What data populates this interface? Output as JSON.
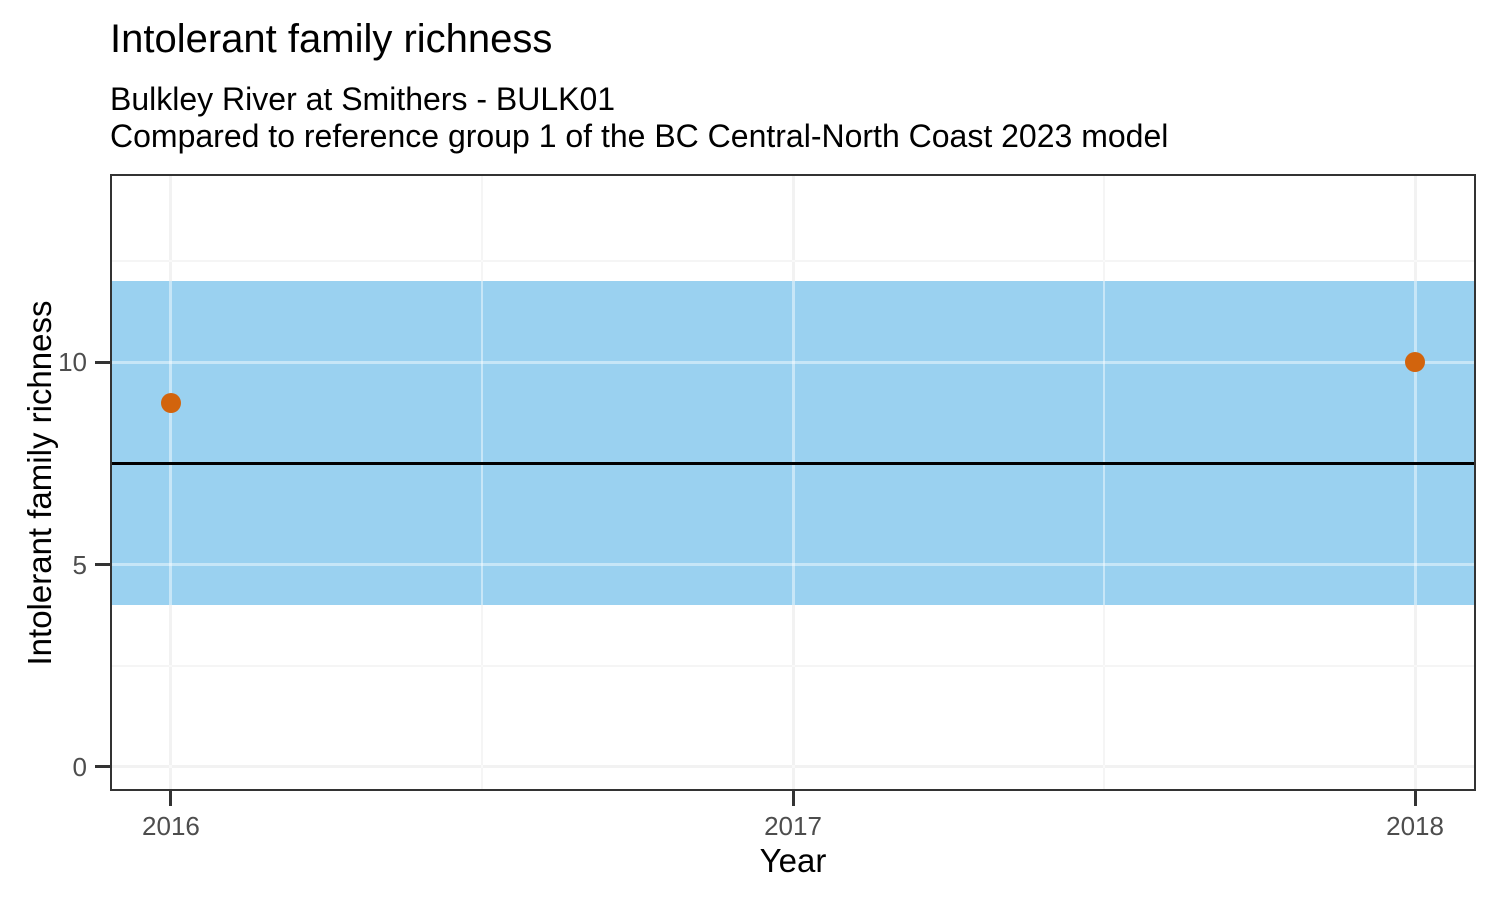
{
  "page": {
    "background": "#FFFFFF"
  },
  "chart_data": {
    "type": "scatter",
    "title": "Intolerant family richness",
    "subtitle_lines": [
      "Bulkley River at Smithers - BULK01",
      "Compared to reference group 1 of the BC Central-North Coast 2023 model"
    ],
    "xlabel": "Year",
    "ylabel": "Intolerant family richness",
    "xlim": [
      2015.902,
      2018.098
    ],
    "ylim": [
      -0.594,
      14.657
    ],
    "x_ticks": [
      {
        "value": 2016,
        "label": "2016"
      },
      {
        "value": 2017,
        "label": "2017"
      },
      {
        "value": 2018,
        "label": "2018"
      }
    ],
    "y_ticks": [
      {
        "value": 0,
        "label": "0"
      },
      {
        "value": 5,
        "label": "5"
      },
      {
        "value": 10,
        "label": "10"
      }
    ],
    "x_minor_gridlines": [
      2016.5,
      2017.5
    ],
    "y_minor_gridlines": [
      2.5,
      7.5,
      12.5
    ],
    "grid": "on",
    "legend": "none",
    "reference_band": {
      "name": "reference-interval",
      "ymin": 4,
      "ymax": 12,
      "fill": "#9AD1F0"
    },
    "reference_line": {
      "name": "reference-median",
      "y": 7.5,
      "color": "#000000",
      "thickness": 3.5
    },
    "series": [
      {
        "name": "observed-values",
        "type": "point",
        "color": "#D2640D",
        "point_diameter": 20,
        "points": [
          {
            "x": 2016,
            "y": 9
          },
          {
            "x": 2018,
            "y": 10
          }
        ]
      }
    ],
    "style": {
      "panel_border": "#333333",
      "grid_major": "#E7E7E7",
      "grid_minor": "#EDEDED",
      "grid_overlay": "rgba(255,255,255,0.45)",
      "tick_color": "#333333",
      "tick_label_color": "#4D4D4D",
      "text_color": "#000000"
    }
  }
}
